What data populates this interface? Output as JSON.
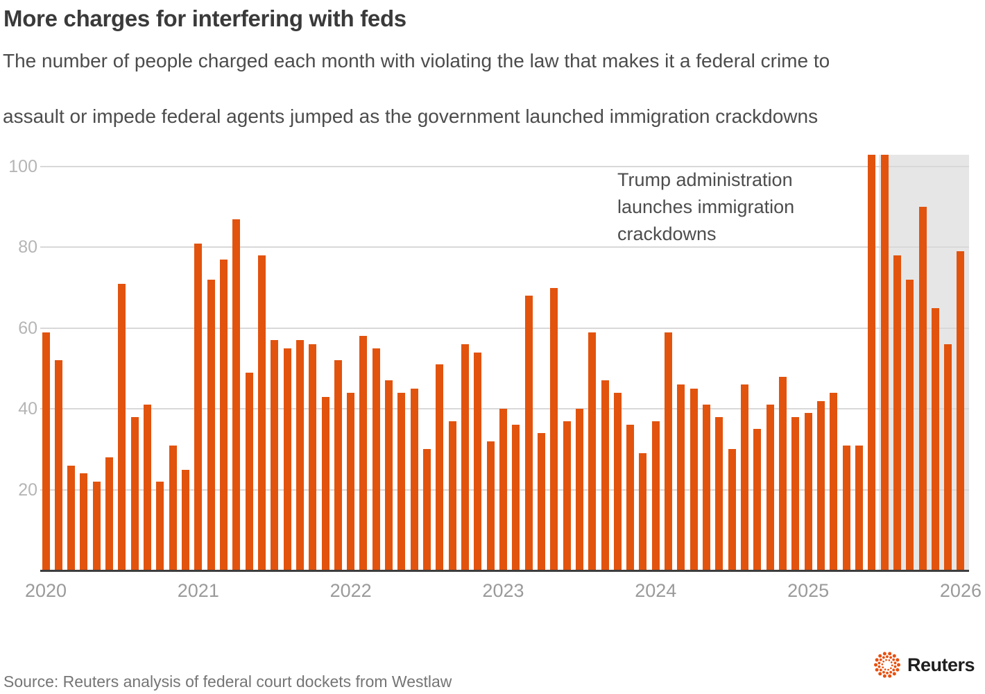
{
  "header": {
    "title": "More charges for interfering with feds",
    "subtitle_lines": [
      "The number of people charged each month with violating the law that makes it a federal crime to",
      "assault or impede federal agents jumped as the government launched immigration crackdowns"
    ]
  },
  "chart_data": {
    "type": "bar",
    "title": "More charges for interfering with feds",
    "description": "People charged each month under the federal statute on assaulting or impeding federal agents",
    "x_start": "2020-01",
    "x_end": "2026-01",
    "values": [
      59,
      52,
      26,
      24,
      22,
      28,
      71,
      38,
      41,
      22,
      31,
      25,
      81,
      72,
      77,
      87,
      49,
      78,
      57,
      55,
      57,
      56,
      43,
      52,
      44,
      58,
      55,
      47,
      44,
      45,
      30,
      51,
      37,
      56,
      54,
      32,
      40,
      36,
      68,
      34,
      70,
      37,
      40,
      59,
      47,
      44,
      36,
      29,
      37,
      59,
      46,
      45,
      41,
      38,
      30,
      46,
      35,
      41,
      48,
      38,
      39,
      42,
      44,
      31,
      31,
      103,
      103,
      78,
      72,
      90,
      65,
      56,
      79
    ],
    "year_ticks": [
      "2020",
      "2021",
      "2022",
      "2023",
      "2024",
      "2025",
      "2026"
    ],
    "y_ticks": [
      20,
      40,
      60,
      80,
      100
    ],
    "ylim": [
      0,
      103
    ],
    "grid": true,
    "legend": "none",
    "highlight_region": {
      "start": "2025-07",
      "end": "2026-01",
      "color": "#e6e6e6"
    },
    "annotation": {
      "lines": [
        "Trump administration",
        "launches immigration",
        "crackdowns"
      ]
    },
    "colors": {
      "bar": "#e2530e",
      "band": "#e6e6e6",
      "grid": "#d8d8d8",
      "axis": "#3d3d3d",
      "y_tick_label": "#b5b5b5",
      "year_label": "#9a9a9a"
    }
  },
  "footer": {
    "source": "Source: Reuters analysis of federal court dockets from Westlaw",
    "logo_text": "Reuters",
    "logo_color": "#e8500f"
  }
}
